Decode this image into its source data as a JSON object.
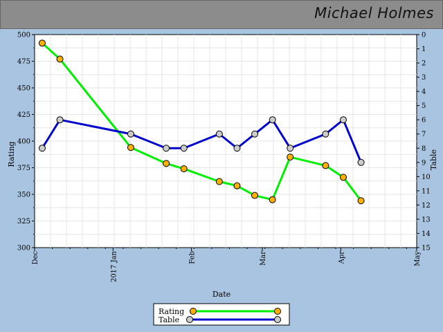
{
  "header": {
    "player_name": "Michael Holmes"
  },
  "chart_data": {
    "type": "line",
    "xlabel": "Date",
    "ylabel_left": "Rating",
    "ylabel_right": "Table",
    "x_ticks": [
      "Dec",
      "2017 Jan",
      "Feb",
      "Mar",
      "Apr",
      "May"
    ],
    "x_tick_dates": [
      "2016-12-01",
      "2017-01-01",
      "2017-02-01",
      "2017-03-01",
      "2017-04-01",
      "2017-05-01"
    ],
    "xlim": [
      "2016-12-01",
      "2017-05-01"
    ],
    "y_left_ticks": [
      500,
      475,
      450,
      425,
      400,
      375,
      350,
      325,
      300
    ],
    "y_left_range": [
      300,
      500
    ],
    "y_right_ticks": [
      0,
      1,
      2,
      3,
      4,
      5,
      6,
      7,
      8,
      9,
      10,
      11,
      12,
      13,
      14,
      15
    ],
    "y_right_range": [
      0,
      15
    ],
    "y_right_inverted": true,
    "grid": true,
    "legend_position": "bottom-center",
    "series": [
      {
        "name": "Rating",
        "axis": "left",
        "color": "#00ee00",
        "marker_color": "#ffb000",
        "points": [
          {
            "x": "2016-12-04",
            "y": 492
          },
          {
            "x": "2016-12-11",
            "y": 477
          },
          {
            "x": "2017-01-08",
            "y": 394
          },
          {
            "x": "2017-01-22",
            "y": 379
          },
          {
            "x": "2017-01-29",
            "y": 374
          },
          {
            "x": "2017-02-12",
            "y": 362
          },
          {
            "x": "2017-02-19",
            "y": 358
          },
          {
            "x": "2017-02-26",
            "y": 349
          },
          {
            "x": "2017-03-05",
            "y": 345
          },
          {
            "x": "2017-03-12",
            "y": 385
          },
          {
            "x": "2017-03-26",
            "y": 377
          },
          {
            "x": "2017-04-02",
            "y": 366
          },
          {
            "x": "2017-04-09",
            "y": 344
          }
        ]
      },
      {
        "name": "Table",
        "axis": "right",
        "color": "#0000cc",
        "marker_color": "#cccccc",
        "points": [
          {
            "x": "2016-12-04",
            "y": 8
          },
          {
            "x": "2016-12-11",
            "y": 6
          },
          {
            "x": "2017-01-08",
            "y": 7
          },
          {
            "x": "2017-01-22",
            "y": 8
          },
          {
            "x": "2017-01-29",
            "y": 8
          },
          {
            "x": "2017-02-12",
            "y": 7
          },
          {
            "x": "2017-02-19",
            "y": 8
          },
          {
            "x": "2017-02-26",
            "y": 7
          },
          {
            "x": "2017-03-05",
            "y": 6
          },
          {
            "x": "2017-03-12",
            "y": 8
          },
          {
            "x": "2017-03-26",
            "y": 7
          },
          {
            "x": "2017-04-02",
            "y": 6
          },
          {
            "x": "2017-04-09",
            "y": 9
          }
        ]
      }
    ]
  }
}
